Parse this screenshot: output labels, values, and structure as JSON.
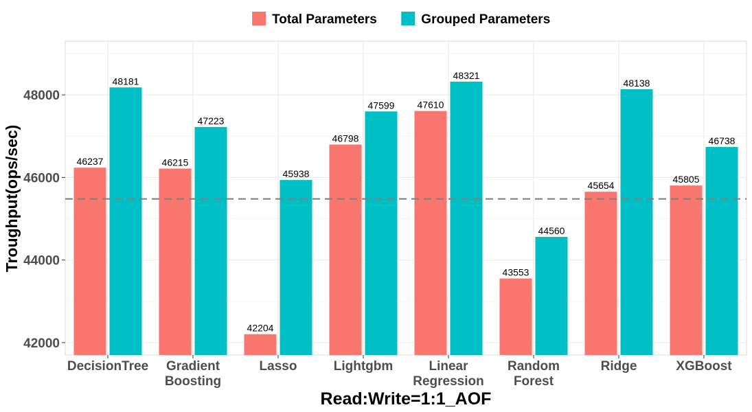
{
  "chart_data": {
    "type": "bar",
    "title": "",
    "xlabel": "Read:Write=1:1_AOF",
    "ylabel": "Troughput(ops/sec)",
    "ylim": [
      41700,
      49300
    ],
    "yticks": [
      42000,
      44000,
      46000,
      48000
    ],
    "grid": true,
    "legend_position": "top",
    "reference_line": {
      "value": 45480,
      "style": "dashed",
      "color": "#808080"
    },
    "categories": [
      [
        "DecisionTree"
      ],
      [
        "Gradient",
        "Boosting"
      ],
      [
        "Lasso"
      ],
      [
        "Lightgbm"
      ],
      [
        "Linear",
        "Regression"
      ],
      [
        "Random",
        "Forest"
      ],
      [
        "Ridge"
      ],
      [
        "XGBoost"
      ]
    ],
    "series": [
      {
        "name": "Total Parameters",
        "color": "#F8766D",
        "values": [
          46237,
          46215,
          42204,
          46798,
          47610,
          43553,
          45654,
          45805
        ]
      },
      {
        "name": "Grouped Parameters",
        "color": "#00BFC4",
        "values": [
          48181,
          47223,
          45938,
          47599,
          48321,
          44560,
          48138,
          46738
        ]
      }
    ]
  }
}
